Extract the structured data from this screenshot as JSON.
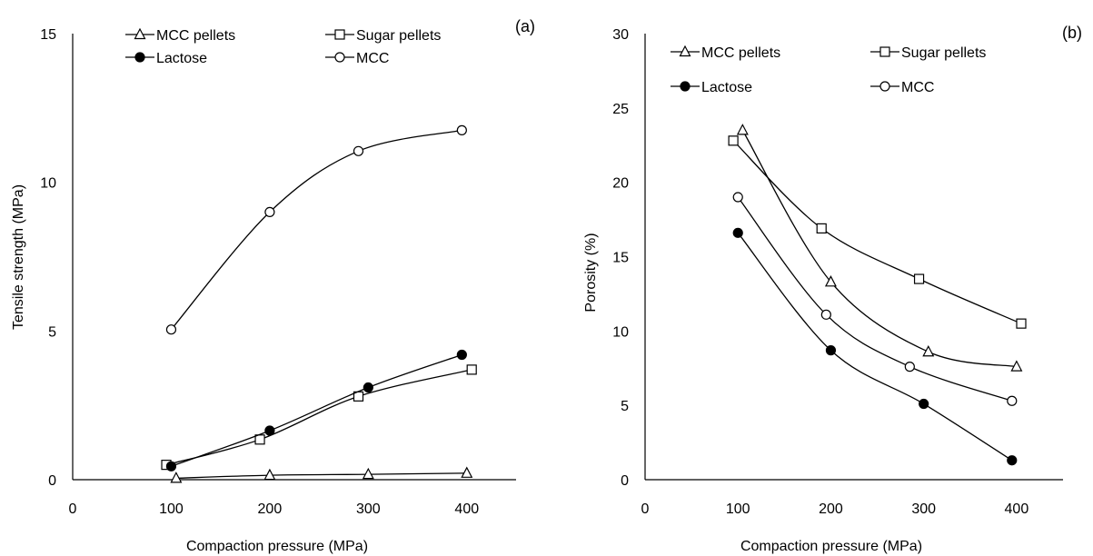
{
  "chart_data": [
    {
      "type": "line",
      "panel_label": "(a)",
      "xlabel": "Compaction pressure (MPa)",
      "ylabel": "Tensile strength (MPa)",
      "xlim": [
        0,
        450
      ],
      "ylim": [
        0,
        15
      ],
      "xticks": [
        0,
        100,
        200,
        300,
        400
      ],
      "yticks": [
        0,
        5,
        10,
        15
      ],
      "grid": false,
      "legend_position": "top",
      "series": [
        {
          "name": "MCC pellets",
          "marker": "triangle-open",
          "x": [
            105,
            200,
            300,
            400
          ],
          "y": [
            0.05,
            0.15,
            0.18,
            0.22
          ]
        },
        {
          "name": "Sugar pellets",
          "marker": "square-open",
          "x": [
            95,
            190,
            290,
            405
          ],
          "y": [
            0.5,
            1.35,
            2.8,
            3.7
          ]
        },
        {
          "name": "Lactose",
          "marker": "circle-filled",
          "x": [
            100,
            200,
            300,
            395
          ],
          "y": [
            0.45,
            1.65,
            3.1,
            4.2
          ]
        },
        {
          "name": "MCC",
          "marker": "circle-open",
          "x": [
            100,
            200,
            290,
            395
          ],
          "y": [
            5.05,
            9.0,
            11.05,
            11.75
          ]
        }
      ]
    },
    {
      "type": "line",
      "panel_label": "(b)",
      "xlabel": "Compaction pressure (MPa)",
      "ylabel": "Porosity (%)",
      "xlim": [
        0,
        450
      ],
      "ylim": [
        0,
        30
      ],
      "xticks": [
        0,
        100,
        200,
        300,
        400
      ],
      "yticks": [
        0,
        5,
        10,
        15,
        20,
        25,
        30
      ],
      "grid": false,
      "legend_position": "top",
      "series": [
        {
          "name": "MCC pellets",
          "marker": "triangle-open",
          "x": [
            105,
            200,
            305,
            400
          ],
          "y": [
            23.5,
            13.3,
            8.6,
            7.6
          ]
        },
        {
          "name": "Sugar pellets",
          "marker": "square-open",
          "x": [
            95,
            190,
            295,
            405
          ],
          "y": [
            22.8,
            16.9,
            13.5,
            10.5
          ]
        },
        {
          "name": "Lactose",
          "marker": "circle-filled",
          "x": [
            100,
            200,
            300,
            395
          ],
          "y": [
            16.6,
            8.7,
            5.1,
            1.3
          ]
        },
        {
          "name": "MCC",
          "marker": "circle-open",
          "x": [
            100,
            195,
            285,
            395
          ],
          "y": [
            19.0,
            11.1,
            7.6,
            5.3
          ]
        }
      ]
    }
  ]
}
